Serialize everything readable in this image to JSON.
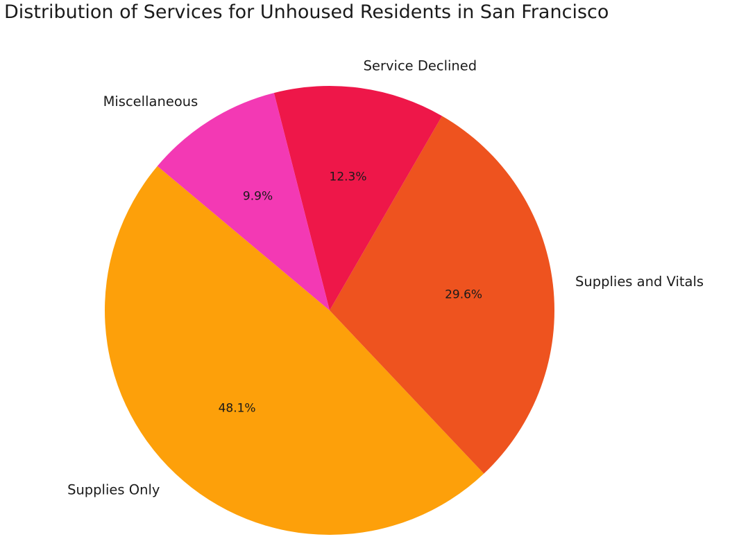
{
  "chart_data": {
    "type": "pie",
    "title": "Distribution of Services for Unhoused Residents in San Francisco",
    "slices": [
      {
        "label": "Supplies Only",
        "value": 48.1,
        "pct_label": "48.1%",
        "color": "#FDA00A"
      },
      {
        "label": "Supplies and Vitals",
        "value": 29.6,
        "pct_label": "29.6%",
        "color": "#EE531F"
      },
      {
        "label": "Service Declined",
        "value": 12.3,
        "pct_label": "12.3%",
        "color": "#EE1749"
      },
      {
        "label": "Miscellaneous",
        "value": 9.9,
        "pct_label": "9.9%",
        "color": "#F339B4"
      }
    ],
    "start_angle_deg": 140,
    "direction": "counterclockwise",
    "legend": "none"
  }
}
